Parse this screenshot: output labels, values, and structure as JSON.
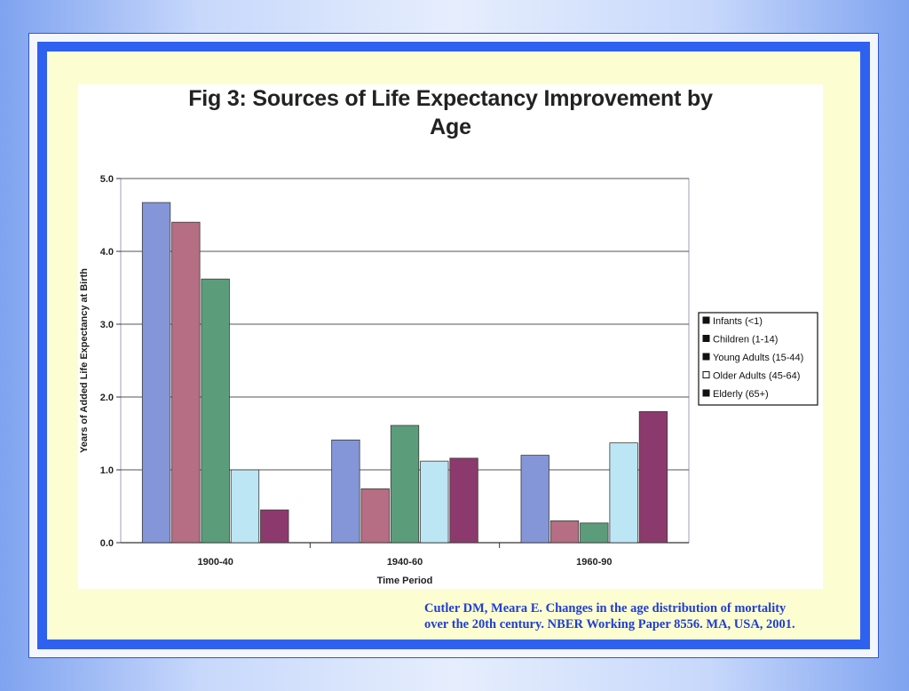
{
  "colors": {
    "slide_border": "#2f61f0",
    "slide_fill": "#fdfdd2",
    "citation_text": "#1f3fd0"
  },
  "chart_data": {
    "type": "bar",
    "title_lines": [
      "Fig 3: Sources of Life Expectancy Improvement by",
      "Age"
    ],
    "xlabel": "Time Period",
    "ylabel": "Years of Added Life Expectancy at Birth",
    "categories": [
      "1900-40",
      "1940-60",
      "1960-90"
    ],
    "ylim": [
      0,
      5
    ],
    "yticks": [
      "0.0",
      "1.0",
      "2.0",
      "3.0",
      "4.0",
      "5.0"
    ],
    "grid": true,
    "legend_position": "right",
    "series": [
      {
        "name": "Infants (<1)",
        "values": [
          4.67,
          1.41,
          1.2
        ],
        "color": "#8496d8"
      },
      {
        "name": "Children (1-14)",
        "values": [
          4.4,
          0.74,
          0.3
        ],
        "color": "#b56e83"
      },
      {
        "name": "Young Adults (15-44)",
        "values": [
          3.62,
          1.61,
          0.27
        ],
        "color": "#5b9d7b"
      },
      {
        "name": "Older Adults (45-64)",
        "values": [
          1.0,
          1.12,
          1.37
        ],
        "color": "#bde6f5"
      },
      {
        "name": "Elderly (65+)",
        "values": [
          0.45,
          1.16,
          1.8
        ],
        "color": "#8c3a6d"
      }
    ]
  },
  "citation": {
    "line1": "Cutler DM, Meara E. Changes in the  age distribution of mortality",
    "line2": "over  the 20th century. NBER Working Paper 8556.  MA, USA, 2001."
  }
}
